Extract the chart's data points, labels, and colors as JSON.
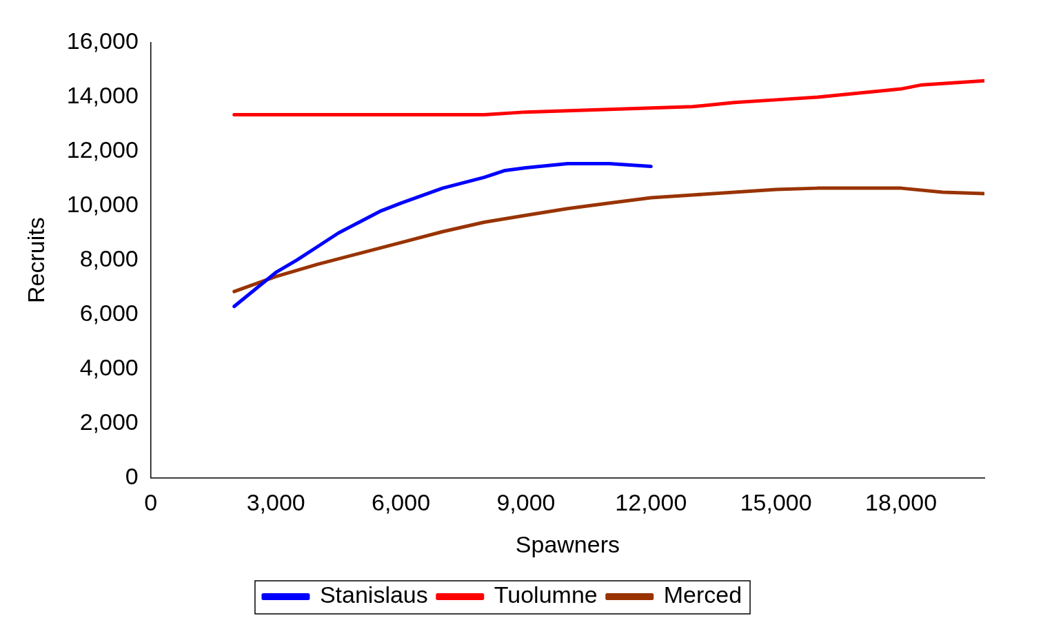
{
  "chart_data": {
    "type": "line",
    "xlabel": "Spawners",
    "ylabel": "Recruits",
    "xlim": [
      0,
      20000
    ],
    "xticks": [
      {
        "value": 0,
        "label": "0"
      },
      {
        "value": 3000,
        "label": "3,000"
      },
      {
        "value": 6000,
        "label": "6,000"
      },
      {
        "value": 9000,
        "label": "9,000"
      },
      {
        "value": 12000,
        "label": "12,000"
      },
      {
        "value": 15000,
        "label": "15,000"
      },
      {
        "value": 18000,
        "label": "18,000"
      }
    ],
    "ylim": [
      0,
      16000
    ],
    "yticks": [
      {
        "value": 0,
        "label": "0"
      },
      {
        "value": 2000,
        "label": "2,000"
      },
      {
        "value": 4000,
        "label": "4,000"
      },
      {
        "value": 6000,
        "label": "6,000"
      },
      {
        "value": 8000,
        "label": "8,000"
      },
      {
        "value": 10000,
        "label": "10,000"
      },
      {
        "value": 12000,
        "label": "12,000"
      },
      {
        "value": 14000,
        "label": "14,000"
      },
      {
        "value": 16000,
        "label": "16,000"
      }
    ],
    "grid": false,
    "legend": "bottom",
    "marker": "none",
    "line_style": "solid",
    "series": [
      {
        "name": "Stanislaus",
        "color": "#0000ff",
        "x": [
          2000,
          3000,
          3500,
          4000,
          4500,
          5000,
          5500,
          6000,
          7000,
          8000,
          8500,
          9000,
          10000,
          11000,
          12000
        ],
        "values": [
          6300,
          7550,
          8000,
          8500,
          9000,
          9400,
          9800,
          10100,
          10650,
          11050,
          11300,
          11400,
          11550,
          11550,
          11450
        ]
      },
      {
        "name": "Tuolumne",
        "color": "#ff0000",
        "x": [
          2000,
          8000,
          9000,
          10000,
          11000,
          12000,
          13000,
          14000,
          15000,
          16000,
          17000,
          18000,
          18500,
          19000,
          20000
        ],
        "values": [
          13350,
          13350,
          13450,
          13500,
          13550,
          13600,
          13650,
          13800,
          13900,
          14000,
          14150,
          14300,
          14450,
          14500,
          14600
        ]
      },
      {
        "name": "Merced",
        "color": "#993300",
        "x": [
          2000,
          3000,
          4000,
          5000,
          6000,
          7000,
          8000,
          9000,
          10000,
          11000,
          12000,
          13000,
          14000,
          15000,
          16000,
          17000,
          18000,
          19000,
          20000
        ],
        "values": [
          6850,
          7400,
          7850,
          8250,
          8650,
          9050,
          9400,
          9650,
          9900,
          10100,
          10300,
          10400,
          10500,
          10600,
          10650,
          10650,
          10650,
          10500,
          10450
        ]
      }
    ]
  }
}
